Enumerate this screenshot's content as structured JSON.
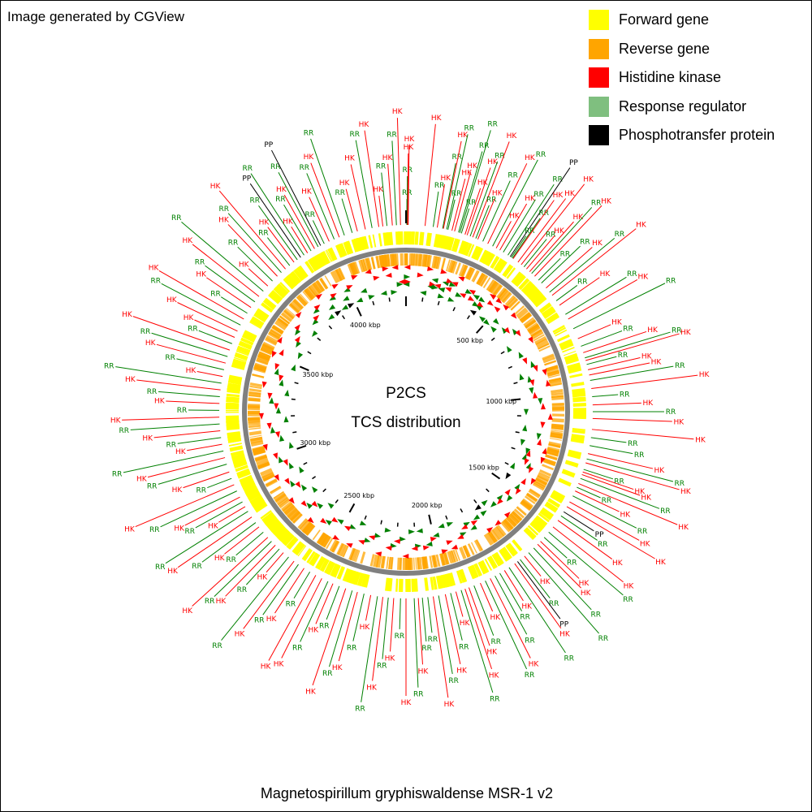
{
  "credit": "Image generated by CGView",
  "caption": "Magnetospirillum gryphiswaldense MSR-1 v2",
  "center": {
    "line1": "P2CS",
    "line2": "TCS distribution"
  },
  "legend": [
    {
      "label": "Forward gene",
      "color": "#ffff00"
    },
    {
      "label": "Reverse gene",
      "color": "#ffa500"
    },
    {
      "label": "Histidine kinase",
      "color": "#ff0000"
    },
    {
      "label": "Response regulator",
      "color": "#7fbf7f"
    },
    {
      "label": "Phosphotransfer protein",
      "color": "#000000"
    }
  ],
  "colors": {
    "hk": "#ff0000",
    "rr": "#008000",
    "pp": "#000000",
    "backbone": "#808080",
    "forward": "#ffff00",
    "reverse": "#ffa500"
  },
  "axis": {
    "genome_length_kbp": 4300,
    "ticks": [
      {
        "kbp": 500,
        "label": "500 kbp"
      },
      {
        "kbp": 1000,
        "label": "1000 kbp"
      },
      {
        "kbp": 1500,
        "label": "1500 kbp"
      },
      {
        "kbp": 2000,
        "label": "2000 kbp"
      },
      {
        "kbp": 2500,
        "label": "2500 kbp"
      },
      {
        "kbp": 3000,
        "label": "3000 kbp"
      },
      {
        "kbp": 3500,
        "label": "3500 kbp"
      },
      {
        "kbp": 4000,
        "label": "4000 kbp"
      }
    ]
  },
  "callout_labels": {
    "hk": "HK",
    "rr": "RR",
    "pp": "PP"
  },
  "tcs_features": [
    {
      "kbp": 3,
      "type": "rr"
    },
    {
      "kbp": 4,
      "type": "rr"
    },
    {
      "kbp": 6,
      "type": "hk"
    },
    {
      "kbp": 8,
      "type": "hk"
    },
    {
      "kbp": 70,
      "type": "hk"
    },
    {
      "kbp": 100,
      "type": "rr"
    },
    {
      "kbp": 115,
      "type": "hk"
    },
    {
      "kbp": 135,
      "type": "rr"
    },
    {
      "kbp": 138,
      "type": "hk"
    },
    {
      "kbp": 150,
      "type": "rr"
    },
    {
      "kbp": 155,
      "type": "rr"
    },
    {
      "kbp": 170,
      "type": "hk"
    },
    {
      "kbp": 180,
      "type": "hk"
    },
    {
      "kbp": 195,
      "type": "rr"
    },
    {
      "kbp": 200,
      "type": "rr"
    },
    {
      "kbp": 206,
      "type": "rr"
    },
    {
      "kbp": 220,
      "type": "hk"
    },
    {
      "kbp": 228,
      "type": "hk"
    },
    {
      "kbp": 240,
      "type": "rr"
    },
    {
      "kbp": 250,
      "type": "hk"
    },
    {
      "kbp": 262,
      "type": "rr"
    },
    {
      "kbp": 270,
      "type": "hk"
    },
    {
      "kbp": 290,
      "type": "rr"
    },
    {
      "kbp": 310,
      "type": "hk"
    },
    {
      "kbp": 330,
      "type": "rr"
    },
    {
      "kbp": 345,
      "type": "hk"
    },
    {
      "kbp": 360,
      "type": "hk"
    },
    {
      "kbp": 375,
      "type": "rr"
    },
    {
      "kbp": 395,
      "type": "rr"
    },
    {
      "kbp": 405,
      "type": "pp"
    },
    {
      "kbp": 410,
      "type": "rr"
    },
    {
      "kbp": 415,
      "type": "rr"
    },
    {
      "kbp": 418,
      "type": "hk"
    },
    {
      "kbp": 440,
      "type": "hk"
    },
    {
      "kbp": 455,
      "type": "hk"
    },
    {
      "kbp": 468,
      "type": "rr"
    },
    {
      "kbp": 480,
      "type": "hk"
    },
    {
      "kbp": 495,
      "type": "hk"
    },
    {
      "kbp": 505,
      "type": "rr"
    },
    {
      "kbp": 520,
      "type": "hk"
    },
    {
      "kbp": 540,
      "type": "rr"
    },
    {
      "kbp": 555,
      "type": "rr"
    },
    {
      "kbp": 580,
      "type": "hk"
    },
    {
      "kbp": 600,
      "type": "rr"
    },
    {
      "kbp": 615,
      "type": "hk"
    },
    {
      "kbp": 640,
      "type": "rr"
    },
    {
      "kbp": 660,
      "type": "hk"
    },
    {
      "kbp": 700,
      "type": "rr"
    },
    {
      "kbp": 720,
      "type": "hk"
    },
    {
      "kbp": 760,
      "type": "rr"
    },
    {
      "kbp": 800,
      "type": "hk"
    },
    {
      "kbp": 830,
      "type": "rr"
    },
    {
      "kbp": 855,
      "type": "hk"
    },
    {
      "kbp": 875,
      "type": "rr"
    },
    {
      "kbp": 885,
      "type": "hk"
    },
    {
      "kbp": 900,
      "type": "rr"
    },
    {
      "kbp": 920,
      "type": "hk"
    },
    {
      "kbp": 940,
      "type": "hk"
    },
    {
      "kbp": 960,
      "type": "rr"
    },
    {
      "kbp": 990,
      "type": "hk"
    },
    {
      "kbp": 1020,
      "type": "rr"
    },
    {
      "kbp": 1050,
      "type": "hk"
    },
    {
      "kbp": 1075,
      "type": "rr"
    },
    {
      "kbp": 1100,
      "type": "hk"
    },
    {
      "kbp": 1140,
      "type": "hk"
    },
    {
      "kbp": 1170,
      "type": "rr"
    },
    {
      "kbp": 1200,
      "type": "rr"
    },
    {
      "kbp": 1230,
      "type": "hk"
    },
    {
      "kbp": 1250,
      "type": "rr"
    },
    {
      "kbp": 1265,
      "type": "hk"
    },
    {
      "kbp": 1290,
      "type": "rr"
    },
    {
      "kbp": 1300,
      "type": "hk"
    },
    {
      "kbp": 1310,
      "type": "hk"
    },
    {
      "kbp": 1325,
      "type": "rr"
    },
    {
      "kbp": 1345,
      "type": "hk"
    },
    {
      "kbp": 1360,
      "type": "rr"
    },
    {
      "kbp": 1375,
      "type": "hk"
    },
    {
      "kbp": 1395,
      "type": "rr"
    },
    {
      "kbp": 1420,
      "type": "hk"
    },
    {
      "kbp": 1440,
      "type": "hk"
    },
    {
      "kbp": 1462,
      "type": "pp"
    },
    {
      "kbp": 1480,
      "type": "rr"
    },
    {
      "kbp": 1500,
      "type": "hk"
    },
    {
      "kbp": 1530,
      "type": "hk"
    },
    {
      "kbp": 1555,
      "type": "rr"
    },
    {
      "kbp": 1580,
      "type": "rr"
    },
    {
      "kbp": 1600,
      "type": "hk"
    },
    {
      "kbp": 1615,
      "type": "hk"
    },
    {
      "kbp": 1635,
      "type": "rr"
    },
    {
      "kbp": 1660,
      "type": "rr"
    },
    {
      "kbp": 1680,
      "type": "hk"
    },
    {
      "kbp": 1700,
      "type": "rr"
    },
    {
      "kbp": 1712,
      "type": "pp"
    },
    {
      "kbp": 1725,
      "type": "hk"
    },
    {
      "kbp": 1750,
      "type": "rr"
    },
    {
      "kbp": 1770,
      "type": "hk"
    },
    {
      "kbp": 1790,
      "type": "rr"
    },
    {
      "kbp": 1810,
      "type": "rr"
    },
    {
      "kbp": 1830,
      "type": "hk"
    },
    {
      "kbp": 1850,
      "type": "rr"
    },
    {
      "kbp": 1870,
      "type": "hk"
    },
    {
      "kbp": 1895,
      "type": "rr"
    },
    {
      "kbp": 1915,
      "type": "hk"
    },
    {
      "kbp": 1930,
      "type": "hk"
    },
    {
      "kbp": 1945,
      "type": "rr"
    },
    {
      "kbp": 1965,
      "type": "hk"
    },
    {
      "kbp": 1985,
      "type": "rr"
    },
    {
      "kbp": 2005,
      "type": "hk"
    },
    {
      "kbp": 2030,
      "type": "rr"
    },
    {
      "kbp": 2050,
      "type": "hk"
    },
    {
      "kbp": 2070,
      "type": "rr"
    },
    {
      "kbp": 2090,
      "type": "rr"
    },
    {
      "kbp": 2105,
      "type": "hk"
    },
    {
      "kbp": 2120,
      "type": "rr"
    },
    {
      "kbp": 2150,
      "type": "hk"
    },
    {
      "kbp": 2170,
      "type": "rr"
    },
    {
      "kbp": 2195,
      "type": "hk"
    },
    {
      "kbp": 2215,
      "type": "rr"
    },
    {
      "kbp": 2235,
      "type": "hk"
    },
    {
      "kbp": 2255,
      "type": "rr"
    },
    {
      "kbp": 2280,
      "type": "hk"
    },
    {
      "kbp": 2305,
      "type": "rr"
    },
    {
      "kbp": 2330,
      "type": "hk"
    },
    {
      "kbp": 2350,
      "type": "rr"
    },
    {
      "kbp": 2375,
      "type": "hk"
    },
    {
      "kbp": 2400,
      "type": "rr"
    },
    {
      "kbp": 2425,
      "type": "hk"
    },
    {
      "kbp": 2445,
      "type": "rr"
    },
    {
      "kbp": 2470,
      "type": "hk"
    },
    {
      "kbp": 2495,
      "type": "hk"
    },
    {
      "kbp": 2520,
      "type": "rr"
    },
    {
      "kbp": 2545,
      "type": "hk"
    },
    {
      "kbp": 2570,
      "type": "rr"
    },
    {
      "kbp": 2590,
      "type": "hk"
    },
    {
      "kbp": 2615,
      "type": "rr"
    },
    {
      "kbp": 2640,
      "type": "hk"
    },
    {
      "kbp": 2660,
      "type": "rr"
    },
    {
      "kbp": 2680,
      "type": "hk"
    },
    {
      "kbp": 2700,
      "type": "rr"
    },
    {
      "kbp": 2720,
      "type": "hk"
    },
    {
      "kbp": 2745,
      "type": "rr"
    },
    {
      "kbp": 2770,
      "type": "hk"
    },
    {
      "kbp": 2790,
      "type": "rr"
    },
    {
      "kbp": 2815,
      "type": "hk"
    },
    {
      "kbp": 2840,
      "type": "rr"
    },
    {
      "kbp": 2860,
      "type": "hk"
    },
    {
      "kbp": 2880,
      "type": "rr"
    },
    {
      "kbp": 2900,
      "type": "hk"
    },
    {
      "kbp": 2925,
      "type": "rr"
    },
    {
      "kbp": 2950,
      "type": "hk"
    },
    {
      "kbp": 2975,
      "type": "rr"
    },
    {
      "kbp": 3000,
      "type": "hk"
    },
    {
      "kbp": 3030,
      "type": "rr"
    },
    {
      "kbp": 3055,
      "type": "hk"
    },
    {
      "kbp": 3080,
      "type": "rr"
    },
    {
      "kbp": 3105,
      "type": "hk"
    },
    {
      "kbp": 3130,
      "type": "rr"
    },
    {
      "kbp": 3155,
      "type": "hk"
    },
    {
      "kbp": 3180,
      "type": "rr"
    },
    {
      "kbp": 3205,
      "type": "hk"
    },
    {
      "kbp": 3230,
      "type": "rr"
    },
    {
      "kbp": 3255,
      "type": "hk"
    },
    {
      "kbp": 3280,
      "type": "rr"
    },
    {
      "kbp": 3305,
      "type": "hk"
    },
    {
      "kbp": 3330,
      "type": "rr"
    },
    {
      "kbp": 3355,
      "type": "hk"
    },
    {
      "kbp": 3380,
      "type": "rr"
    },
    {
      "kbp": 3405,
      "type": "hk"
    },
    {
      "kbp": 3430,
      "type": "rr"
    },
    {
      "kbp": 3455,
      "type": "hk"
    },
    {
      "kbp": 3480,
      "type": "rr"
    },
    {
      "kbp": 3505,
      "type": "hk"
    },
    {
      "kbp": 3530,
      "type": "hk"
    },
    {
      "kbp": 3555,
      "type": "rr"
    },
    {
      "kbp": 3580,
      "type": "hk"
    },
    {
      "kbp": 3605,
      "type": "rr"
    },
    {
      "kbp": 3630,
      "type": "hk"
    },
    {
      "kbp": 3655,
      "type": "rr"
    },
    {
      "kbp": 3680,
      "type": "hk"
    },
    {
      "kbp": 3705,
      "type": "rr"
    },
    {
      "kbp": 3730,
      "type": "hk"
    },
    {
      "kbp": 3755,
      "type": "rr"
    },
    {
      "kbp": 3780,
      "type": "hk"
    },
    {
      "kbp": 3800,
      "type": "rr"
    },
    {
      "kbp": 3820,
      "type": "hk"
    },
    {
      "kbp": 3840,
      "type": "rr"
    },
    {
      "kbp": 3860,
      "type": "hk"
    },
    {
      "kbp": 3875,
      "type": "rr"
    },
    {
      "kbp": 3890,
      "type": "pp"
    },
    {
      "kbp": 3905,
      "type": "rr"
    },
    {
      "kbp": 3920,
      "type": "hk"
    },
    {
      "kbp": 3935,
      "type": "rr"
    },
    {
      "kbp": 3950,
      "type": "hk"
    },
    {
      "kbp": 3965,
      "type": "rr"
    },
    {
      "kbp": 3975,
      "type": "pp"
    },
    {
      "kbp": 3990,
      "type": "rr"
    },
    {
      "kbp": 4010,
      "type": "hk"
    },
    {
      "kbp": 4030,
      "type": "rr"
    },
    {
      "kbp": 4050,
      "type": "hk"
    },
    {
      "kbp": 4070,
      "type": "rr"
    },
    {
      "kbp": 4100,
      "type": "rr"
    },
    {
      "kbp": 4120,
      "type": "hk"
    },
    {
      "kbp": 4150,
      "type": "hk"
    },
    {
      "kbp": 4175,
      "type": "rr"
    },
    {
      "kbp": 4200,
      "type": "hk"
    },
    {
      "kbp": 4215,
      "type": "hk"
    },
    {
      "kbp": 4230,
      "type": "rr"
    },
    {
      "kbp": 4250,
      "type": "hk"
    },
    {
      "kbp": 4265,
      "type": "rr"
    },
    {
      "kbp": 4280,
      "type": "hk"
    }
  ]
}
